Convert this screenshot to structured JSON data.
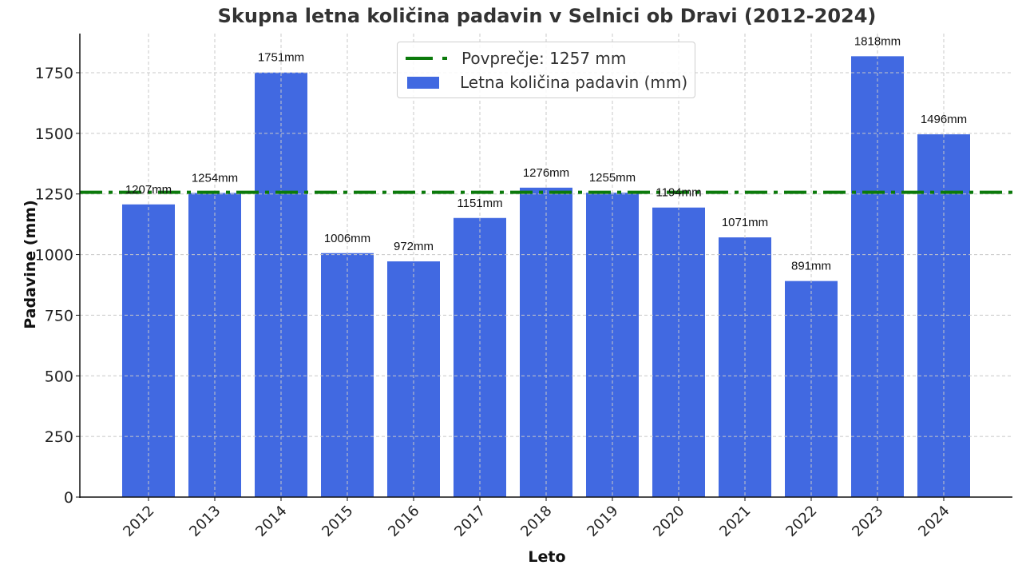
{
  "chart_data": {
    "type": "bar",
    "title": "Skupna letna količina padavin v Selnici ob Dravi (2012-2024)",
    "xlabel": "Leto",
    "ylabel": "Padavine (mm)",
    "categories": [
      "2012",
      "2013",
      "2014",
      "2015",
      "2016",
      "2017",
      "2018",
      "2019",
      "2020",
      "2021",
      "2022",
      "2023",
      "2024"
    ],
    "values": [
      1207,
      1254,
      1751,
      1006,
      972,
      1151,
      1276,
      1255,
      1194,
      1071,
      891,
      1818,
      1496
    ],
    "value_labels": [
      "1207mm",
      "1254mm",
      "1751mm",
      "1006mm",
      "972mm",
      "1151mm",
      "1276mm",
      "1255mm",
      "1194mm",
      "1071mm",
      "891mm",
      "1818mm",
      "1496mm"
    ],
    "yticks": [
      0,
      250,
      500,
      750,
      1000,
      1250,
      1500,
      1750
    ],
    "ylim": [
      0,
      1910
    ],
    "grid": true,
    "average": {
      "value": 1257,
      "label": "Povprečje: 1257 mm",
      "color": "#0b7a0b",
      "style": "dash-dot"
    },
    "series": [
      {
        "name": "Letna količina padavin (mm)",
        "values": [
          1207,
          1254,
          1751,
          1006,
          972,
          1151,
          1276,
          1255,
          1194,
          1071,
          891,
          1818,
          1496
        ],
        "color": "#4169e1"
      }
    ],
    "legend": {
      "position": "upper center",
      "entries": [
        "Povprečje: 1257 mm",
        "Letna količina padavin (mm)"
      ]
    }
  }
}
